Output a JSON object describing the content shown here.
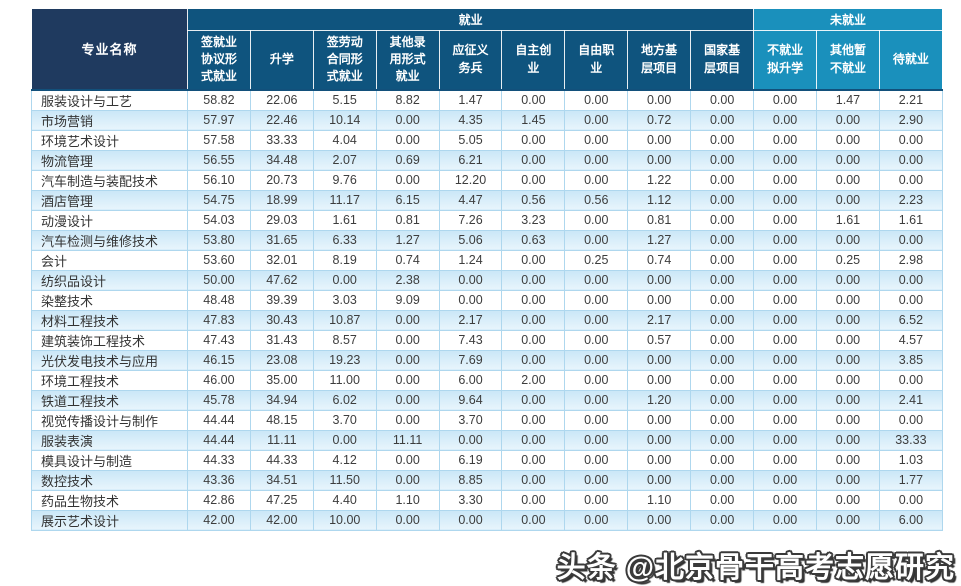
{
  "table": {
    "major_column_header": "专业名称",
    "groups": [
      {
        "label": "就业",
        "span": 9
      },
      {
        "label": "未就业",
        "span": 3
      }
    ],
    "columns": [
      "签就业协议形式就业",
      "升学",
      "签劳动合同形式就业",
      "其他录用形式就业",
      "应征义务兵",
      "自主创业",
      "自由职业",
      "地方基层项目",
      "国家基层项目",
      "不就业拟升学",
      "其他暂不就业",
      "待就业"
    ],
    "rows": [
      {
        "major": "服装设计与工艺",
        "values": [
          "58.82",
          "22.06",
          "5.15",
          "8.82",
          "1.47",
          "0.00",
          "0.00",
          "0.00",
          "0.00",
          "0.00",
          "1.47",
          "2.21"
        ]
      },
      {
        "major": "市场营销",
        "values": [
          "57.97",
          "22.46",
          "10.14",
          "0.00",
          "4.35",
          "1.45",
          "0.00",
          "0.72",
          "0.00",
          "0.00",
          "0.00",
          "2.90"
        ]
      },
      {
        "major": "环境艺术设计",
        "values": [
          "57.58",
          "33.33",
          "4.04",
          "0.00",
          "5.05",
          "0.00",
          "0.00",
          "0.00",
          "0.00",
          "0.00",
          "0.00",
          "0.00"
        ]
      },
      {
        "major": "物流管理",
        "values": [
          "56.55",
          "34.48",
          "2.07",
          "0.69",
          "6.21",
          "0.00",
          "0.00",
          "0.00",
          "0.00",
          "0.00",
          "0.00",
          "0.00"
        ]
      },
      {
        "major": "汽车制造与装配技术",
        "values": [
          "56.10",
          "20.73",
          "9.76",
          "0.00",
          "12.20",
          "0.00",
          "0.00",
          "1.22",
          "0.00",
          "0.00",
          "0.00",
          "0.00"
        ]
      },
      {
        "major": "酒店管理",
        "values": [
          "54.75",
          "18.99",
          "11.17",
          "6.15",
          "4.47",
          "0.56",
          "0.56",
          "1.12",
          "0.00",
          "0.00",
          "0.00",
          "2.23"
        ]
      },
      {
        "major": "动漫设计",
        "values": [
          "54.03",
          "29.03",
          "1.61",
          "0.81",
          "7.26",
          "3.23",
          "0.00",
          "0.81",
          "0.00",
          "0.00",
          "1.61",
          "1.61"
        ]
      },
      {
        "major": "汽车检测与维修技术",
        "values": [
          "53.80",
          "31.65",
          "6.33",
          "1.27",
          "5.06",
          "0.63",
          "0.00",
          "1.27",
          "0.00",
          "0.00",
          "0.00",
          "0.00"
        ]
      },
      {
        "major": "会计",
        "values": [
          "53.60",
          "32.01",
          "8.19",
          "0.74",
          "1.24",
          "0.00",
          "0.25",
          "0.74",
          "0.00",
          "0.00",
          "0.25",
          "2.98"
        ]
      },
      {
        "major": "纺织品设计",
        "values": [
          "50.00",
          "47.62",
          "0.00",
          "2.38",
          "0.00",
          "0.00",
          "0.00",
          "0.00",
          "0.00",
          "0.00",
          "0.00",
          "0.00"
        ]
      },
      {
        "major": "染整技术",
        "values": [
          "48.48",
          "39.39",
          "3.03",
          "9.09",
          "0.00",
          "0.00",
          "0.00",
          "0.00",
          "0.00",
          "0.00",
          "0.00",
          "0.00"
        ]
      },
      {
        "major": "材料工程技术",
        "values": [
          "47.83",
          "30.43",
          "10.87",
          "0.00",
          "2.17",
          "0.00",
          "0.00",
          "2.17",
          "0.00",
          "0.00",
          "0.00",
          "6.52"
        ]
      },
      {
        "major": "建筑装饰工程技术",
        "values": [
          "47.43",
          "31.43",
          "8.57",
          "0.00",
          "7.43",
          "0.00",
          "0.00",
          "0.57",
          "0.00",
          "0.00",
          "0.00",
          "4.57"
        ]
      },
      {
        "major": "光伏发电技术与应用",
        "values": [
          "46.15",
          "23.08",
          "19.23",
          "0.00",
          "7.69",
          "0.00",
          "0.00",
          "0.00",
          "0.00",
          "0.00",
          "0.00",
          "3.85"
        ]
      },
      {
        "major": "环境工程技术",
        "values": [
          "46.00",
          "35.00",
          "11.00",
          "0.00",
          "6.00",
          "2.00",
          "0.00",
          "0.00",
          "0.00",
          "0.00",
          "0.00",
          "0.00"
        ]
      },
      {
        "major": "铁道工程技术",
        "values": [
          "45.78",
          "34.94",
          "6.02",
          "0.00",
          "9.64",
          "0.00",
          "0.00",
          "1.20",
          "0.00",
          "0.00",
          "0.00",
          "2.41"
        ]
      },
      {
        "major": "视觉传播设计与制作",
        "values": [
          "44.44",
          "48.15",
          "3.70",
          "0.00",
          "3.70",
          "0.00",
          "0.00",
          "0.00",
          "0.00",
          "0.00",
          "0.00",
          "0.00"
        ]
      },
      {
        "major": "服装表演",
        "values": [
          "44.44",
          "11.11",
          "0.00",
          "11.11",
          "0.00",
          "0.00",
          "0.00",
          "0.00",
          "0.00",
          "0.00",
          "0.00",
          "33.33"
        ]
      },
      {
        "major": "模具设计与制造",
        "values": [
          "44.33",
          "44.33",
          "4.12",
          "0.00",
          "6.19",
          "0.00",
          "0.00",
          "0.00",
          "0.00",
          "0.00",
          "0.00",
          "1.03"
        ]
      },
      {
        "major": "数控技术",
        "values": [
          "43.36",
          "34.51",
          "11.50",
          "0.00",
          "8.85",
          "0.00",
          "0.00",
          "0.00",
          "0.00",
          "0.00",
          "0.00",
          "1.77"
        ]
      },
      {
        "major": "药品生物技术",
        "values": [
          "42.86",
          "47.25",
          "4.40",
          "1.10",
          "3.30",
          "0.00",
          "0.00",
          "1.10",
          "0.00",
          "0.00",
          "0.00",
          "0.00"
        ]
      },
      {
        "major": "展示艺术设计",
        "values": [
          "42.00",
          "42.00",
          "10.00",
          "0.00",
          "0.00",
          "0.00",
          "0.00",
          "0.00",
          "0.00",
          "0.00",
          "0.00",
          "6.00"
        ]
      }
    ]
  },
  "watermark": {
    "text": "头条 @北京骨干高考志愿研究"
  },
  "colors": {
    "header_navy": "#1f3a5f",
    "employment_blue": "#0f547e",
    "unemployment_blue": "#1a90bc",
    "stripe_blue": "#cfe9f8",
    "grid_blue": "#aed7ee",
    "body_text": "#3d3d3d"
  }
}
